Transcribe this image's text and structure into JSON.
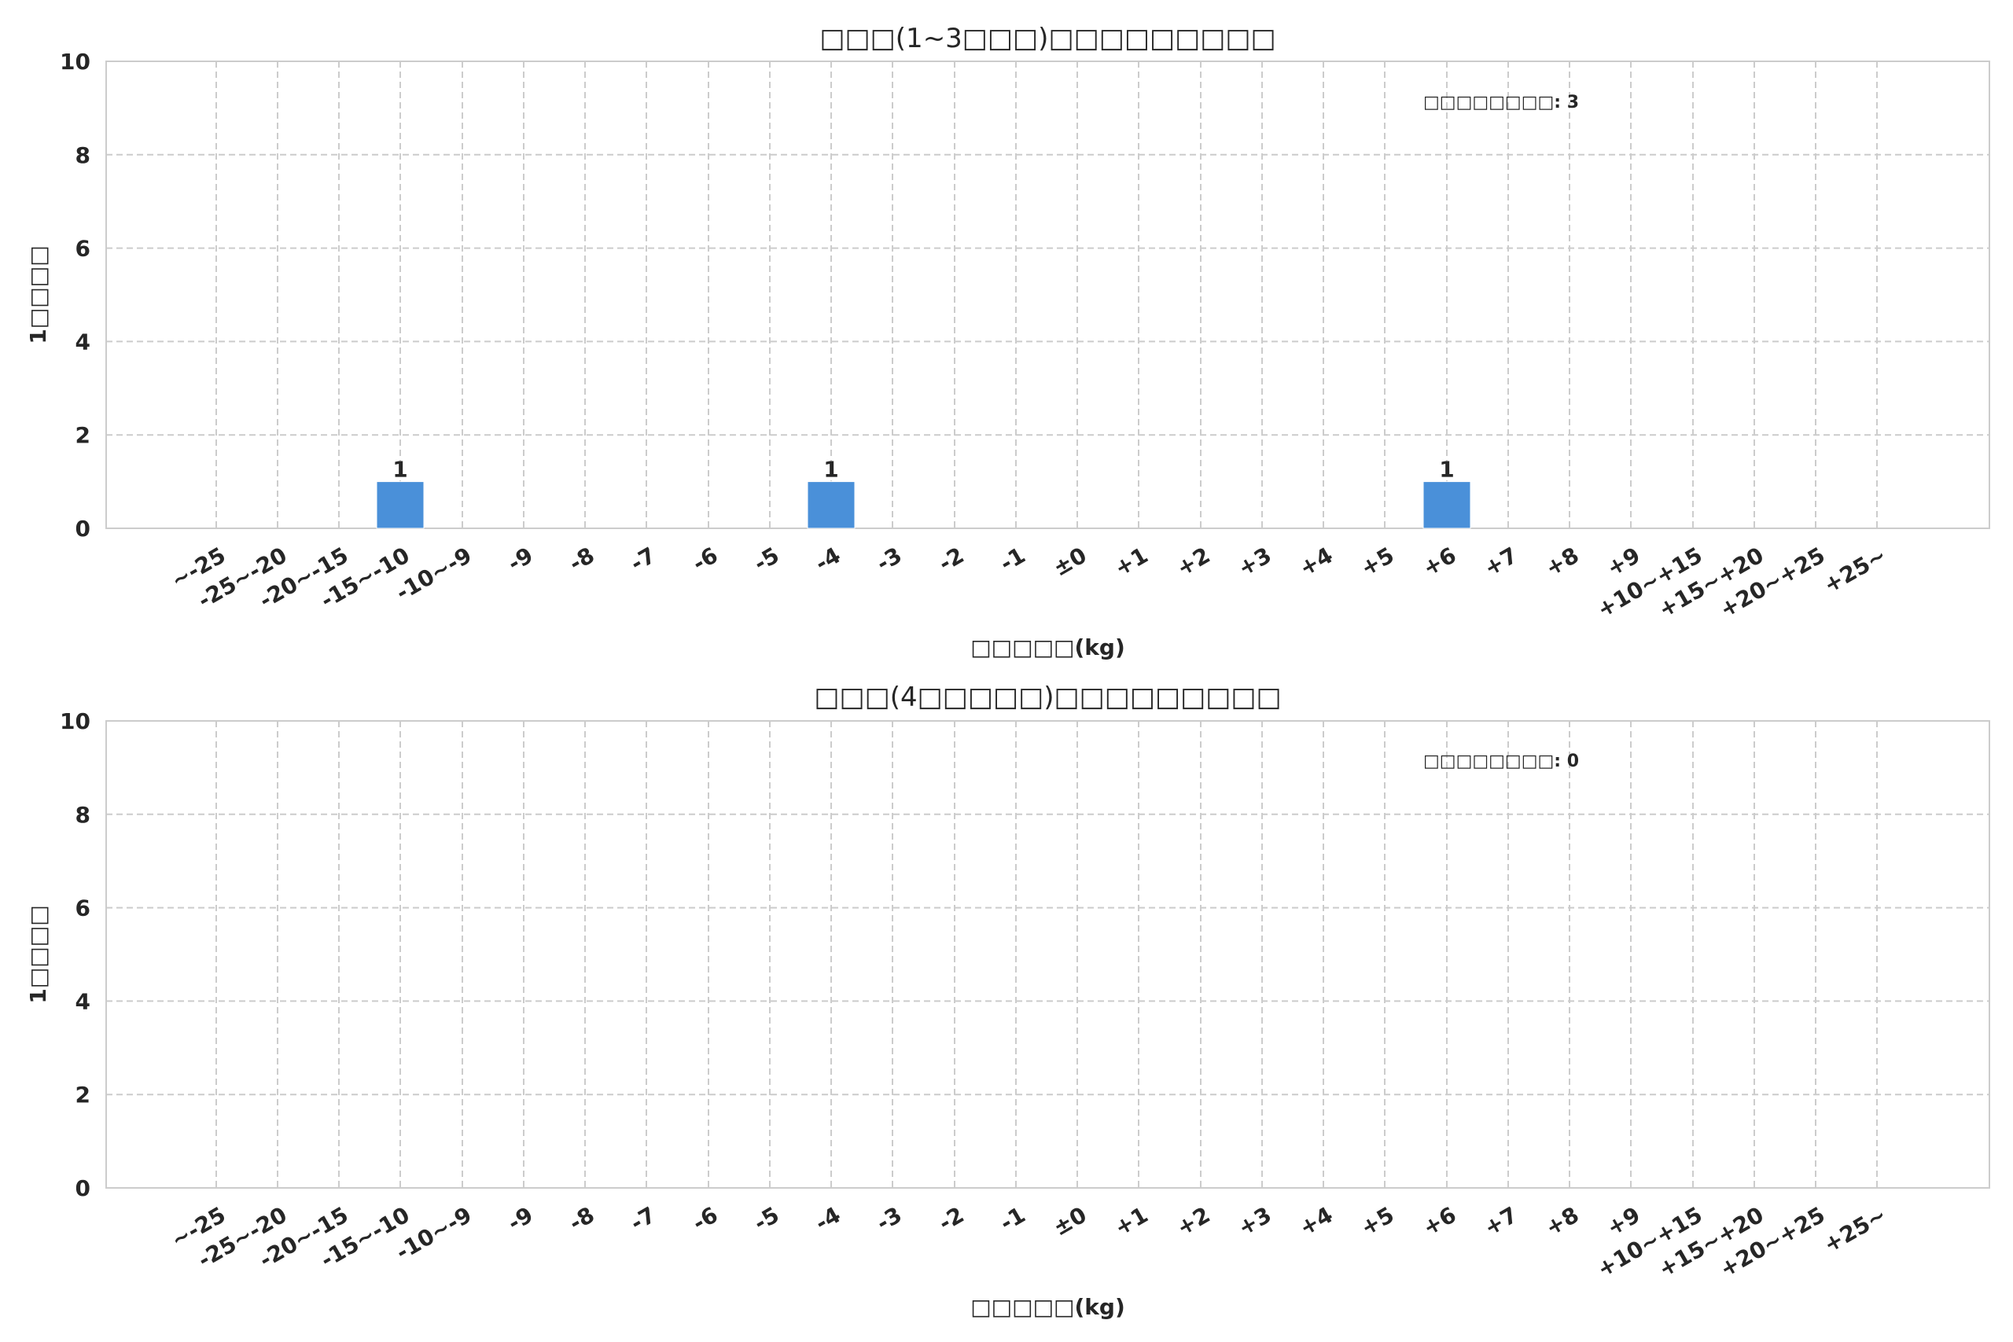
{
  "chart_data": [
    {
      "type": "bar",
      "title": "□□□(1~3□□□)□□□□□□□□□",
      "xlabel": "□□□□□(kg)",
      "ylabel": "1□□□□",
      "annotation": "□□□□□□□□: 3",
      "categories": [
        "~-25",
        "-25~-20",
        "-20~-15",
        "-15~-10",
        "-10~-9",
        "-9",
        "-8",
        "-7",
        "-6",
        "-5",
        "-4",
        "-3",
        "-2",
        "-1",
        "±0",
        "+1",
        "+2",
        "+3",
        "+4",
        "+5",
        "+6",
        "+7",
        "+8",
        "+9",
        "+10~+15",
        "+15~+20",
        "+20~+25",
        "+25~"
      ],
      "values": [
        0,
        0,
        0,
        1,
        0,
        0,
        0,
        0,
        0,
        0,
        1,
        0,
        0,
        0,
        0,
        0,
        0,
        0,
        0,
        0,
        1,
        0,
        0,
        0,
        0,
        0,
        0,
        0
      ],
      "ylim": [
        0,
        10
      ],
      "yticks": [
        0,
        2,
        4,
        6,
        8,
        10
      ],
      "grid": true,
      "bar_color": "#4a90d9"
    },
    {
      "type": "bar",
      "title": "□□□(4□□□□□)□□□□□□□□□",
      "xlabel": "□□□□□(kg)",
      "ylabel": "1□□□□",
      "annotation": "□□□□□□□□: 0",
      "categories": [
        "~-25",
        "-25~-20",
        "-20~-15",
        "-15~-10",
        "-10~-9",
        "-9",
        "-8",
        "-7",
        "-6",
        "-5",
        "-4",
        "-3",
        "-2",
        "-1",
        "±0",
        "+1",
        "+2",
        "+3",
        "+4",
        "+5",
        "+6",
        "+7",
        "+8",
        "+9",
        "+10~+15",
        "+15~+20",
        "+20~+25",
        "+25~"
      ],
      "values": [
        0,
        0,
        0,
        0,
        0,
        0,
        0,
        0,
        0,
        0,
        0,
        0,
        0,
        0,
        0,
        0,
        0,
        0,
        0,
        0,
        0,
        0,
        0,
        0,
        0,
        0,
        0,
        0
      ],
      "ylim": [
        0,
        10
      ],
      "yticks": [
        0,
        2,
        4,
        6,
        8,
        10
      ],
      "grid": true,
      "bar_color": "#4a90d9"
    }
  ]
}
